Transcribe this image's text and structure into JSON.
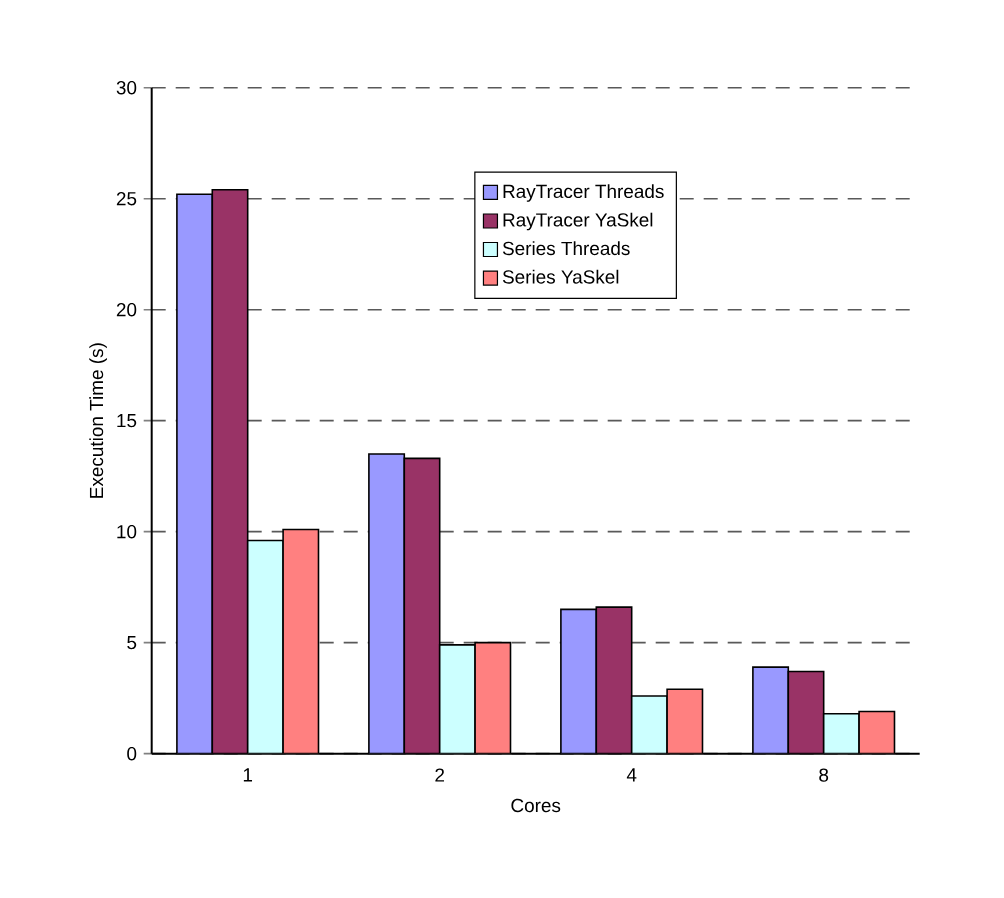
{
  "chart_data": {
    "type": "bar",
    "xlabel": "Cores",
    "ylabel": "Execution Time (s)",
    "categories": [
      "1",
      "2",
      "4",
      "8"
    ],
    "series": [
      {
        "name": "RayTracer Threads",
        "color": "#9999ff",
        "values": [
          25.2,
          13.5,
          6.5,
          3.9
        ]
      },
      {
        "name": "RayTracer YaSkel",
        "color": "#993366",
        "values": [
          25.4,
          13.3,
          6.6,
          3.7
        ]
      },
      {
        "name": "Series Threads",
        "color": "#ccffff",
        "values": [
          9.6,
          4.9,
          2.6,
          1.8
        ]
      },
      {
        "name": "Series YaSkel",
        "color": "#ff8080",
        "values": [
          10.1,
          5.0,
          2.9,
          1.9
        ]
      }
    ],
    "ylim": [
      0,
      30
    ],
    "yticks": [
      0,
      5,
      10,
      15,
      20,
      25,
      30
    ],
    "grid": "y",
    "legend": "top right"
  }
}
